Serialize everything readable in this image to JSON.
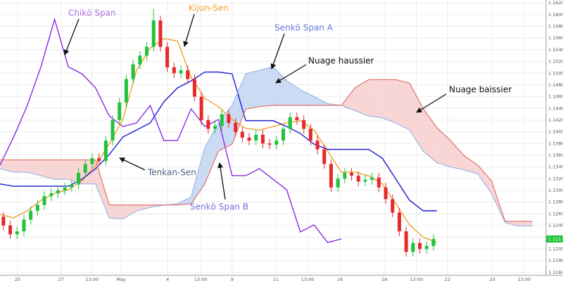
{
  "chart_data": {
    "type": "candlestick",
    "xlim": [
      0,
      160
    ],
    "ylim": [
      1.1155,
      1.1625
    ],
    "grid": true,
    "xticks": [
      {
        "value": 5.15,
        "label": "25"
      },
      {
        "value": 17.9,
        "label": "27"
      },
      {
        "value": 27,
        "label": "13:00"
      },
      {
        "value": 35.5,
        "label": "May"
      },
      {
        "value": 49.1,
        "label": "4"
      },
      {
        "value": 58.8,
        "label": "13:00"
      },
      {
        "value": 68,
        "label": "9"
      },
      {
        "value": 80.8,
        "label": "11"
      },
      {
        "value": 90.1,
        "label": "13:00"
      },
      {
        "value": 99.6,
        "label": "16"
      },
      {
        "value": 112.6,
        "label": "18"
      },
      {
        "value": 122,
        "label": "13:00"
      },
      {
        "value": 131.1,
        "label": "22"
      },
      {
        "value": 144.3,
        "label": "25"
      },
      {
        "value": 153.6,
        "label": "13:00"
      }
    ],
    "yticks": [
      {
        "value": 1.116,
        "label": "1.11600"
      },
      {
        "value": 1.118,
        "label": "1.11800"
      },
      {
        "value": 1.12,
        "label": "1.12000"
      },
      {
        "value": 1.122,
        "label": "1.12200"
      },
      {
        "value": 1.124,
        "label": "1.12400"
      },
      {
        "value": 1.126,
        "label": "1.12600"
      },
      {
        "value": 1.128,
        "label": "1.12800"
      },
      {
        "value": 1.13,
        "label": "1.13000"
      },
      {
        "value": 1.132,
        "label": "1.13200"
      },
      {
        "value": 1.134,
        "label": "1.13400"
      },
      {
        "value": 1.136,
        "label": "1.13600"
      },
      {
        "value": 1.138,
        "label": "1.13800"
      },
      {
        "value": 1.14,
        "label": "1.14000"
      },
      {
        "value": 1.142,
        "label": "1.14200"
      },
      {
        "value": 1.144,
        "label": "1.14400"
      },
      {
        "value": 1.146,
        "label": "1.14600"
      },
      {
        "value": 1.148,
        "label": "1.14800"
      },
      {
        "value": 1.15,
        "label": "1.15000"
      },
      {
        "value": 1.152,
        "label": "1.15200"
      },
      {
        "value": 1.154,
        "label": "1.15400"
      },
      {
        "value": 1.156,
        "label": "1.15600"
      },
      {
        "value": 1.158,
        "label": "1.15800"
      },
      {
        "value": 1.16,
        "label": "1.16000"
      },
      {
        "value": 1.162,
        "label": "1.16200"
      }
    ],
    "up_color": "#22c23a",
    "down_color": "#e8282b",
    "x": [
      1,
      3,
      5,
      7,
      9,
      11,
      13,
      15,
      17,
      19,
      21,
      23,
      25,
      27,
      29,
      31,
      33,
      35,
      37,
      39,
      41,
      43,
      45,
      47,
      49,
      51,
      53,
      55,
      57,
      59,
      61,
      63,
      65,
      67,
      69,
      71,
      73,
      75,
      77,
      79,
      81,
      83,
      85,
      87,
      89,
      91,
      93,
      95,
      97,
      99,
      101,
      103,
      105,
      107,
      109,
      111,
      113,
      115,
      117,
      119,
      121,
      123,
      125,
      127
    ],
    "open": [
      1.1255,
      1.124,
      1.1225,
      1.123,
      1.125,
      1.1265,
      1.1275,
      1.129,
      1.1295,
      1.13,
      1.1305,
      1.131,
      1.133,
      1.1345,
      1.1355,
      1.135,
      1.1385,
      1.142,
      1.145,
      1.149,
      1.1515,
      1.153,
      1.1545,
      1.159,
      1.1545,
      1.151,
      1.15,
      1.1505,
      1.149,
      1.146,
      1.142,
      1.1405,
      1.141,
      1.143,
      1.1415,
      1.14,
      1.139,
      1.1385,
      1.1395,
      1.138,
      1.1378,
      1.1385,
      1.1405,
      1.1425,
      1.142,
      1.1405,
      1.1385,
      1.137,
      1.1345,
      1.1305,
      1.132,
      1.133,
      1.1325,
      1.1315,
      1.1318,
      1.1322,
      1.1305,
      1.1285,
      1.1262,
      1.123,
      1.1195,
      1.121,
      1.12,
      1.1205
    ],
    "high": [
      1.1263,
      1.1248,
      1.1238,
      1.1258,
      1.1273,
      1.1283,
      1.1298,
      1.1303,
      1.1308,
      1.1313,
      1.1318,
      1.1338,
      1.1353,
      1.1363,
      1.1363,
      1.1393,
      1.1428,
      1.1458,
      1.1498,
      1.1523,
      1.1538,
      1.1553,
      1.161,
      1.1598,
      1.1553,
      1.1518,
      1.1513,
      1.1513,
      1.1498,
      1.1468,
      1.1428,
      1.1418,
      1.1438,
      1.1438,
      1.1423,
      1.1408,
      1.1398,
      1.1403,
      1.1403,
      1.1388,
      1.1393,
      1.1413,
      1.1433,
      1.1433,
      1.1428,
      1.1413,
      1.1393,
      1.1378,
      1.1353,
      1.1328,
      1.1338,
      1.1338,
      1.1333,
      1.1326,
      1.133,
      1.133,
      1.1313,
      1.1293,
      1.127,
      1.1238,
      1.1218,
      1.1218,
      1.1213,
      1.1225
    ],
    "low": [
      1.1232,
      1.1217,
      1.1217,
      1.1222,
      1.1242,
      1.1257,
      1.1267,
      1.1282,
      1.1287,
      1.1292,
      1.1297,
      1.1302,
      1.1322,
      1.1337,
      1.1342,
      1.1342,
      1.1377,
      1.1412,
      1.1442,
      1.1482,
      1.1507,
      1.1522,
      1.1537,
      1.1537,
      1.1502,
      1.1492,
      1.1492,
      1.1482,
      1.1452,
      1.1412,
      1.1397,
      1.1397,
      1.1402,
      1.1407,
      1.1392,
      1.1382,
      1.1377,
      1.1377,
      1.1372,
      1.137,
      1.137,
      1.1377,
      1.1397,
      1.1412,
      1.1397,
      1.1377,
      1.1362,
      1.1337,
      1.1297,
      1.1297,
      1.1312,
      1.1317,
      1.1307,
      1.1307,
      1.131,
      1.1297,
      1.1277,
      1.1254,
      1.1222,
      1.1187,
      1.1187,
      1.1192,
      1.1192,
      1.1197
    ],
    "close": [
      1.124,
      1.1225,
      1.123,
      1.125,
      1.1265,
      1.1275,
      1.129,
      1.1295,
      1.13,
      1.1305,
      1.131,
      1.133,
      1.1345,
      1.1355,
      1.135,
      1.1385,
      1.142,
      1.145,
      1.149,
      1.1515,
      1.153,
      1.1545,
      1.159,
      1.1545,
      1.151,
      1.15,
      1.1505,
      1.149,
      1.146,
      1.142,
      1.1405,
      1.141,
      1.143,
      1.1415,
      1.14,
      1.139,
      1.1385,
      1.1395,
      1.138,
      1.1378,
      1.1385,
      1.1405,
      1.1425,
      1.142,
      1.1405,
      1.1385,
      1.137,
      1.1345,
      1.1305,
      1.132,
      1.133,
      1.1325,
      1.1315,
      1.1318,
      1.1322,
      1.1305,
      1.1285,
      1.1262,
      1.123,
      1.1195,
      1.121,
      1.12,
      1.1205,
      1.1217
    ],
    "last_price": {
      "value": 1.1217,
      "label": "1.12170"
    },
    "last_price_color": "#22c23a",
    "line_x": [
      0,
      4,
      8,
      12,
      16,
      20,
      24,
      28,
      32,
      36,
      40,
      44,
      48,
      52,
      56,
      60,
      64,
      68,
      72,
      76,
      80,
      84,
      88,
      92,
      96,
      100,
      104,
      108,
      112,
      116,
      120,
      124,
      128,
      132,
      136,
      140,
      144,
      148,
      152,
      156,
      160
    ],
    "lines": [
      {
        "name": "Chikō Span",
        "color": "#8a2be2",
        "values": [
          1.1343,
          1.1391,
          1.1445,
          1.1511,
          1.1592,
          1.1511,
          1.1499,
          1.1475,
          1.1427,
          1.1409,
          1.1415,
          1.1445,
          1.1385,
          1.1385,
          1.1439,
          1.1409,
          1.1421,
          1.1325,
          1.1325,
          1.1337,
          1.1319,
          1.1301,
          1.1229,
          1.1241,
          1.1211,
          1.1217,
          null,
          null,
          null,
          null,
          null,
          null,
          null,
          null,
          null,
          null,
          null,
          null,
          null,
          null,
          null
        ]
      },
      {
        "name": "Kijun-Sen",
        "color": "#f0a030",
        "values": [
          1.1259,
          1.1253,
          1.1265,
          1.1283,
          1.1295,
          1.1301,
          1.1316,
          1.1343,
          1.1379,
          1.1421,
          1.1505,
          1.1543,
          1.1559,
          1.1555,
          1.1493,
          1.1457,
          1.1443,
          1.1421,
          1.1406,
          1.1403,
          1.1409,
          1.1415,
          1.1419,
          1.1403,
          1.1367,
          1.1331,
          1.1331,
          1.1325,
          1.1311,
          1.1277,
          1.1241,
          1.122,
          1.1211,
          null,
          null,
          null,
          null,
          null,
          null,
          null,
          null
        ]
      },
      {
        "name": "Tenkan-Sen",
        "color": "#1a1ad0",
        "values": [
          1.1311,
          1.1307,
          1.1307,
          1.1307,
          1.1307,
          1.1307,
          1.1319,
          1.1337,
          1.1361,
          1.1391,
          1.1403,
          1.1415,
          1.1451,
          1.1475,
          1.1487,
          1.1502,
          1.1502,
          1.1499,
          1.1419,
          1.1419,
          1.1419,
          1.1409,
          1.1397,
          1.1379,
          1.137,
          1.137,
          1.137,
          1.137,
          1.1355,
          1.1319,
          1.1283,
          1.1265,
          1.1265,
          null,
          null,
          null,
          null,
          null,
          null,
          null,
          null
        ]
      },
      {
        "name": "Senkō Span A",
        "color": "#9db6e6",
        "values": [
          1.1337,
          1.1331,
          1.1331,
          1.1325,
          1.1319,
          1.1319,
          1.1311,
          1.1311,
          1.1253,
          1.1251,
          1.1265,
          1.1271,
          1.1275,
          1.1277,
          1.1289,
          1.1373,
          1.1415,
          1.1445,
          1.1499,
          1.1505,
          1.1511,
          1.1487,
          1.1472,
          1.146,
          1.1448,
          1.1445,
          1.1436,
          1.1427,
          1.1424,
          1.1415,
          1.1403,
          1.1367,
          1.1347,
          1.134,
          1.1335,
          1.1328,
          1.1295,
          1.1245,
          1.1239,
          1.1239,
          null
        ]
      },
      {
        "name": "Senkō Span B",
        "color": "#e0736a",
        "values": [
          1.1352,
          1.1352,
          1.1352,
          1.1352,
          1.1352,
          1.1352,
          1.1352,
          1.1352,
          1.1275,
          1.1275,
          1.1275,
          1.1275,
          1.1275,
          1.1275,
          1.1277,
          1.1311,
          1.1367,
          1.1379,
          1.1439,
          1.1443,
          1.1445,
          1.1445,
          1.1445,
          1.1445,
          1.1445,
          1.1445,
          1.1475,
          1.1489,
          1.1489,
          1.1489,
          1.1483,
          1.1439,
          1.1407,
          1.1385,
          1.1359,
          1.1343,
          1.1316,
          1.1247,
          1.1247,
          1.1247,
          null
        ]
      }
    ],
    "cloud_colors": {
      "bullish": "#c3d5f2",
      "bearish": "#f7cfcf"
    },
    "annotations": [
      "Nuage haussier",
      "Nuage baissier"
    ]
  }
}
